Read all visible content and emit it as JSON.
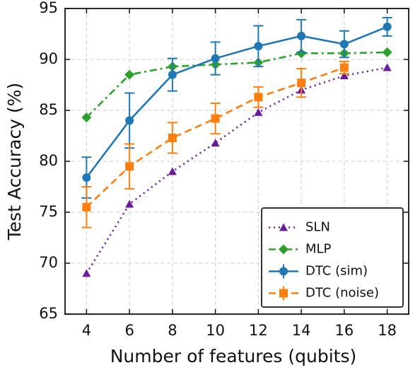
{
  "chart_data": {
    "type": "line",
    "xlabel": "Number of features (qubits)",
    "ylabel": "Test Accuracy (%)",
    "xlim": [
      3,
      19
    ],
    "xticks": [
      4,
      6,
      8,
      10,
      12,
      14,
      16,
      18
    ],
    "ylim": [
      65,
      95
    ],
    "yticks": [
      65,
      70,
      75,
      80,
      85,
      90,
      95
    ],
    "grid": true,
    "legend": "lower right",
    "series": [
      {
        "name": "SLN",
        "color": "#6a1b9a",
        "marker": "triangle",
        "dash": "dotted",
        "x": [
          4,
          6,
          8,
          10,
          12,
          14,
          16,
          18
        ],
        "values": [
          69.0,
          75.8,
          79.0,
          81.8,
          84.8,
          87.0,
          88.4,
          89.2
        ]
      },
      {
        "name": "MLP",
        "color": "#2ca02c",
        "marker": "diamond",
        "dash": "dashdot",
        "x": [
          4,
          6,
          8,
          10,
          12,
          14,
          16,
          18
        ],
        "values": [
          84.3,
          88.5,
          89.3,
          89.5,
          89.7,
          90.6,
          90.6,
          90.7
        ]
      },
      {
        "name": "DTC (sim)",
        "color": "#1f77b4",
        "marker": "circle",
        "dash": "solid",
        "x": [
          4,
          6,
          8,
          10,
          12,
          14,
          16,
          18
        ],
        "values": [
          78.4,
          84.0,
          88.5,
          90.1,
          91.3,
          92.3,
          91.5,
          93.2
        ],
        "errors": [
          2.0,
          2.7,
          1.6,
          1.6,
          2.0,
          1.6,
          1.3,
          0.9
        ]
      },
      {
        "name": "DTC (noise)",
        "color": "#ff7f0e",
        "marker": "square",
        "dash": "dashed",
        "x": [
          4,
          6,
          8,
          10,
          12,
          14,
          16
        ],
        "values": [
          75.5,
          79.5,
          82.3,
          84.2,
          86.3,
          87.7,
          89.2
        ],
        "errors": [
          2.0,
          2.2,
          1.5,
          1.5,
          1.0,
          1.4,
          0.6
        ]
      }
    ]
  }
}
